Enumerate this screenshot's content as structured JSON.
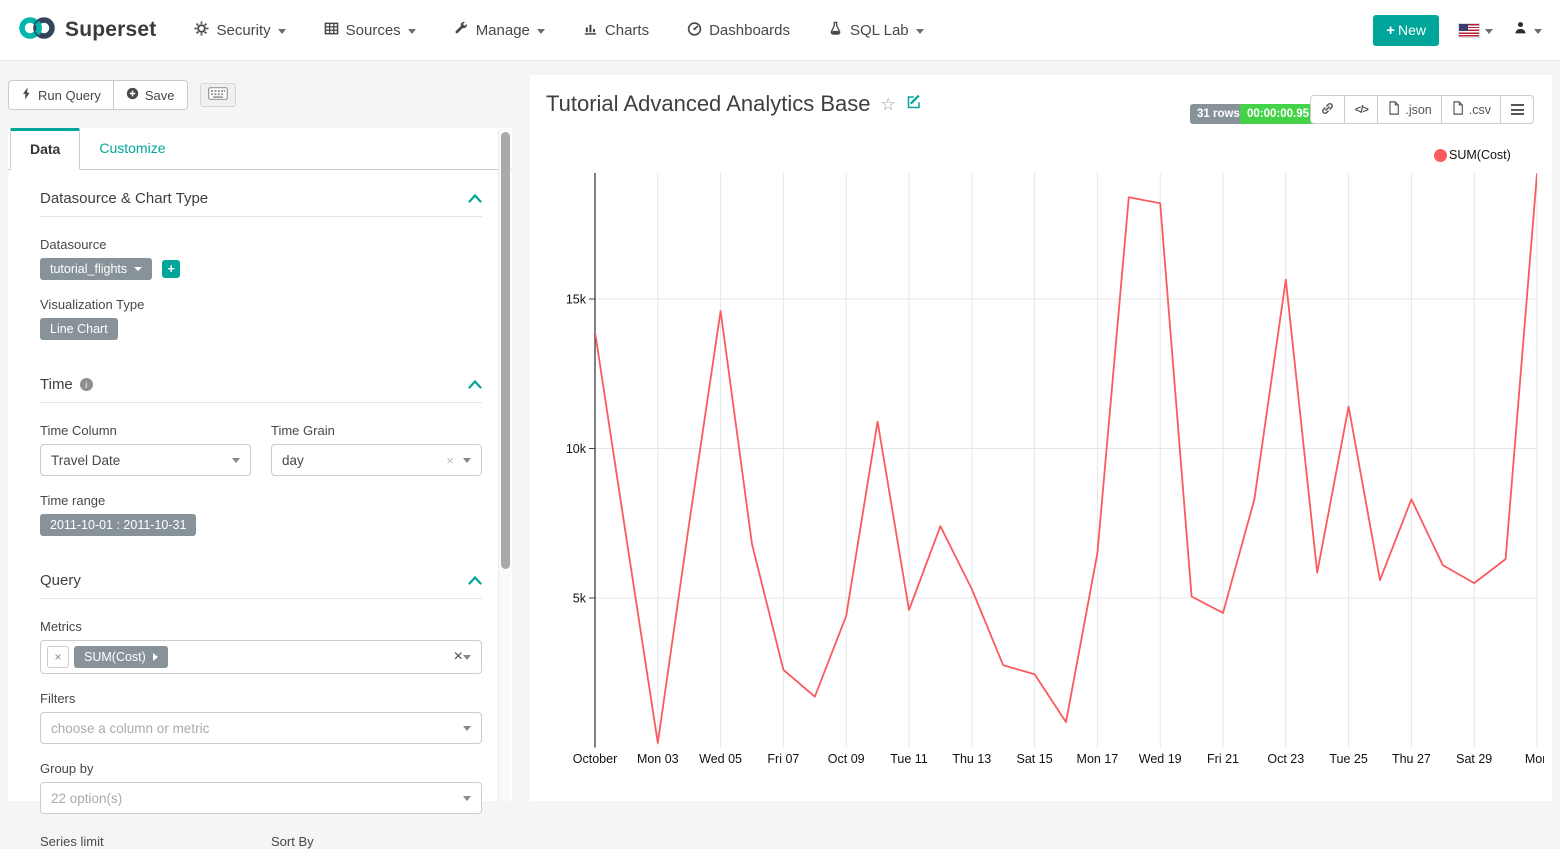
{
  "navbar": {
    "brand": "Superset",
    "items": [
      {
        "label": "Security",
        "icon": "gear-icon",
        "has_caret": true
      },
      {
        "label": "Sources",
        "icon": "table-icon",
        "has_caret": true
      },
      {
        "label": "Manage",
        "icon": "wrench-icon",
        "has_caret": true
      },
      {
        "label": "Charts",
        "icon": "bar-chart-icon",
        "has_caret": false
      },
      {
        "label": "Dashboards",
        "icon": "dashboard-icon",
        "has_caret": false
      },
      {
        "label": "SQL Lab",
        "icon": "flask-icon",
        "has_caret": true
      }
    ],
    "new_label": "New"
  },
  "toolbar": {
    "run_query_label": "Run Query",
    "save_label": "Save"
  },
  "tabs": [
    {
      "label": "Data",
      "active": true
    },
    {
      "label": "Customize",
      "active": false
    }
  ],
  "sections": {
    "datasource": {
      "title": "Datasource & Chart Type",
      "datasource_label": "Datasource",
      "datasource_value": "tutorial_flights",
      "viz_label": "Visualization Type",
      "viz_value": "Line Chart"
    },
    "time": {
      "title": "Time",
      "column_label": "Time Column",
      "column_value": "Travel Date",
      "grain_label": "Time Grain",
      "grain_value": "day",
      "range_label": "Time range",
      "range_value": "2011-10-01 : 2011-10-31"
    },
    "query": {
      "title": "Query",
      "metrics_label": "Metrics",
      "metric_value": "SUM(Cost)",
      "filters_label": "Filters",
      "filters_placeholder": "choose a column or metric",
      "groupby_label": "Group by",
      "groupby_placeholder": "22 option(s)",
      "series_limit_label": "Series limit",
      "sort_by_label": "Sort By"
    }
  },
  "chart_header": {
    "title": "Tutorial Advanced Analytics Base",
    "rows_badge": "31 rows",
    "timer_badge": "00:00:00.95",
    "json_label": ".json",
    "csv_label": ".csv"
  },
  "chart_data": {
    "type": "line",
    "title": "Tutorial Advanced Analytics Base",
    "x_range": [
      "2011-10-01",
      "2011-10-31"
    ],
    "x_tick_labels": [
      "October",
      "Mon 03",
      "Wed 05",
      "Fri 07",
      "Oct 09",
      "Tue 11",
      "Thu 13",
      "Sat 15",
      "Mon 17",
      "Wed 19",
      "Fri 21",
      "Oct 23",
      "Tue 25",
      "Thu 27",
      "Sat 29",
      "Mon"
    ],
    "y_ticks": [
      {
        "value": 5000,
        "label": "5k"
      },
      {
        "value": 10000,
        "label": "10k"
      },
      {
        "value": 15000,
        "label": "15k"
      }
    ],
    "ylim": [
      0,
      19300
    ],
    "grid": true,
    "legend_position": "top-right",
    "series": [
      {
        "name": "SUM(Cost)",
        "color": "#fb5a5e",
        "values": [
          13900,
          7000,
          150,
          7500,
          14600,
          6800,
          2600,
          1700,
          4400,
          10900,
          4600,
          7400,
          5300,
          2750,
          2450,
          850,
          6500,
          18400,
          18200,
          5050,
          4500,
          8300,
          15650,
          5850,
          11400,
          5600,
          8300,
          6100,
          5500,
          6300,
          19200
        ]
      }
    ]
  }
}
